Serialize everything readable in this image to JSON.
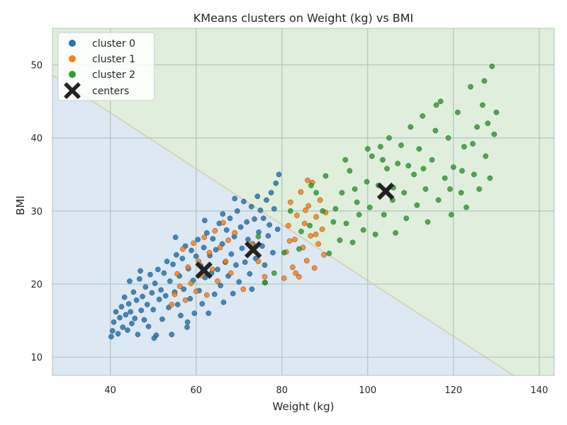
{
  "chart_data": {
    "type": "scatter",
    "title": "KMeans clusters on Weight (kg) vs BMI",
    "xlabel": "Weight (kg)",
    "ylabel": "BMI",
    "xlim": [
      26.5,
      143.5
    ],
    "ylim": [
      7.5,
      55
    ],
    "x_ticks": [
      40,
      60,
      80,
      100,
      120,
      140
    ],
    "y_ticks": [
      10,
      20,
      30,
      40,
      50
    ],
    "grid": true,
    "legend_position": "top-left",
    "background": "decision regions shaded (cluster 0 blue, cluster 2 green)",
    "colors": {
      "cluster 0": "#1f77b4",
      "cluster 1": "#ff7f0e",
      "cluster 2": "#2ca02c",
      "centers": "#222222",
      "region 0": "#dce8f4",
      "region 2": "#dfefdc"
    },
    "boundary_line": [
      [
        26.5,
        48.6
      ],
      [
        134.0,
        7.5
      ]
    ],
    "legend": [
      "cluster 0",
      "cluster 1",
      "cluster 2",
      "centers"
    ],
    "series": [
      {
        "name": "cluster 0",
        "points": [
          [
            40.2,
            12.8
          ],
          [
            40.5,
            13.6
          ],
          [
            40.8,
            14.8
          ],
          [
            41.3,
            16.2
          ],
          [
            41.8,
            13.2
          ],
          [
            42.2,
            15.4
          ],
          [
            42.6,
            16.9
          ],
          [
            42.9,
            14.1
          ],
          [
            43.3,
            18.2
          ],
          [
            43.6,
            15.8
          ],
          [
            44.0,
            13.7
          ],
          [
            44.3,
            17.3
          ],
          [
            44.7,
            16.2
          ],
          [
            45.0,
            14.6
          ],
          [
            45.4,
            18.9
          ],
          [
            45.7,
            15.3
          ],
          [
            46.1,
            17.8
          ],
          [
            46.4,
            13.1
          ],
          [
            46.8,
            20.7
          ],
          [
            47.2,
            16.4
          ],
          [
            47.5,
            18.3
          ],
          [
            47.9,
            15.1
          ],
          [
            48.2,
            19.6
          ],
          [
            48.6,
            17.2
          ],
          [
            48.9,
            14.2
          ],
          [
            49.3,
            21.3
          ],
          [
            49.7,
            18.8
          ],
          [
            50.0,
            16.5
          ],
          [
            50.4,
            20.1
          ],
          [
            50.7,
            13.0
          ],
          [
            51.1,
            22.0
          ],
          [
            51.4,
            17.9
          ],
          [
            51.8,
            19.2
          ],
          [
            52.1,
            15.2
          ],
          [
            52.5,
            21.5
          ],
          [
            52.9,
            18.4
          ],
          [
            53.2,
            23.1
          ],
          [
            53.6,
            16.8
          ],
          [
            53.9,
            20.4
          ],
          [
            54.3,
            13.1
          ],
          [
            54.6,
            22.7
          ],
          [
            55.0,
            18.9
          ],
          [
            55.4,
            24.0
          ],
          [
            55.7,
            17.2
          ],
          [
            56.1,
            21.1
          ],
          [
            56.4,
            15.7
          ],
          [
            56.8,
            23.5
          ],
          [
            57.1,
            19.3
          ],
          [
            57.5,
            25.2
          ],
          [
            57.9,
            14.1
          ],
          [
            58.2,
            22.1
          ],
          [
            58.6,
            18.0
          ],
          [
            58.9,
            24.6
          ],
          [
            59.3,
            20.5
          ],
          [
            59.6,
            16.0
          ],
          [
            60.0,
            23.8
          ],
          [
            60.4,
            26.1
          ],
          [
            60.7,
            19.1
          ],
          [
            61.1,
            22.5
          ],
          [
            61.4,
            17.3
          ],
          [
            61.8,
            25.0
          ],
          [
            62.1,
            20.9
          ],
          [
            62.5,
            27.0
          ],
          [
            62.9,
            16.0
          ],
          [
            63.2,
            23.9
          ],
          [
            63.6,
            21.5
          ],
          [
            63.9,
            26.2
          ],
          [
            64.3,
            18.6
          ],
          [
            64.6,
            24.7
          ],
          [
            65.0,
            22.0
          ],
          [
            65.4,
            28.3
          ],
          [
            65.7,
            19.8
          ],
          [
            66.1,
            25.5
          ],
          [
            66.4,
            17.5
          ],
          [
            66.8,
            23.0
          ],
          [
            67.1,
            27.4
          ],
          [
            67.5,
            21.1
          ],
          [
            67.9,
            29.0
          ],
          [
            68.2,
            24.1
          ],
          [
            68.6,
            18.7
          ],
          [
            68.9,
            26.5
          ],
          [
            69.3,
            22.6
          ],
          [
            69.6,
            30.0
          ],
          [
            70.0,
            20.3
          ],
          [
            70.4,
            27.8
          ],
          [
            70.7,
            24.9
          ],
          [
            71.1,
            31.3
          ],
          [
            71.4,
            23.0
          ],
          [
            71.8,
            28.5
          ],
          [
            72.1,
            26.1
          ],
          [
            72.5,
            21.4
          ],
          [
            72.9,
            30.6
          ],
          [
            73.2,
            25.5
          ],
          [
            73.6,
            28.9
          ],
          [
            73.9,
            23.5
          ],
          [
            74.3,
            32.0
          ],
          [
            74.6,
            27.1
          ],
          [
            75.0,
            30.1
          ],
          [
            75.4,
            25.2
          ],
          [
            75.7,
            29.0
          ],
          [
            76.1,
            20.2
          ],
          [
            76.4,
            31.5
          ],
          [
            76.8,
            26.6
          ],
          [
            77.1,
            28.1
          ],
          [
            77.5,
            32.5
          ],
          [
            77.9,
            24.3
          ],
          [
            78.2,
            30.3
          ],
          [
            78.6,
            33.8
          ],
          [
            79.0,
            27.5
          ],
          [
            79.3,
            35.0
          ],
          [
            44.5,
            20.4
          ],
          [
            47.0,
            21.8
          ],
          [
            50.2,
            12.6
          ],
          [
            55.2,
            26.4
          ],
          [
            58.0,
            14.8
          ],
          [
            62.0,
            28.7
          ],
          [
            66.2,
            29.6
          ],
          [
            69.0,
            31.7
          ],
          [
            73.0,
            19.3
          ],
          [
            76.0,
            22.6
          ]
        ]
      },
      {
        "name": "cluster 1",
        "points": [
          [
            54.3,
            17.2
          ],
          [
            55.0,
            18.6
          ],
          [
            55.6,
            21.4
          ],
          [
            56.2,
            19.7
          ],
          [
            56.9,
            24.8
          ],
          [
            57.5,
            17.8
          ],
          [
            58.1,
            22.3
          ],
          [
            58.8,
            20.1
          ],
          [
            59.4,
            25.6
          ],
          [
            60.0,
            19.0
          ],
          [
            60.6,
            23.1
          ],
          [
            61.3,
            21.2
          ],
          [
            61.9,
            26.4
          ],
          [
            62.5,
            18.5
          ],
          [
            63.1,
            24.3
          ],
          [
            63.8,
            22.0
          ],
          [
            64.4,
            27.3
          ],
          [
            65.0,
            20.4
          ],
          [
            65.6,
            25.0
          ],
          [
            66.3,
            28.4
          ],
          [
            66.9,
            23.1
          ],
          [
            67.5,
            26.0
          ],
          [
            68.1,
            21.5
          ],
          [
            69.0,
            27.0
          ],
          [
            71.0,
            19.3
          ],
          [
            73.0,
            25.5
          ],
          [
            74.5,
            23.1
          ],
          [
            76.0,
            21.0
          ],
          [
            80.5,
            20.8
          ],
          [
            81.0,
            24.4
          ],
          [
            81.5,
            28.0
          ],
          [
            82.0,
            31.2
          ],
          [
            82.5,
            22.3
          ],
          [
            83.0,
            26.1
          ],
          [
            83.5,
            29.4
          ],
          [
            84.0,
            21.0
          ],
          [
            84.4,
            32.6
          ],
          [
            84.9,
            25.0
          ],
          [
            85.3,
            28.3
          ],
          [
            85.8,
            23.2
          ],
          [
            86.2,
            30.7
          ],
          [
            86.7,
            26.6
          ],
          [
            87.1,
            33.9
          ],
          [
            87.6,
            22.2
          ],
          [
            88.0,
            29.2
          ],
          [
            88.5,
            25.5
          ],
          [
            88.9,
            31.5
          ],
          [
            89.4,
            27.5
          ],
          [
            89.8,
            24.0
          ],
          [
            90.2,
            29.8
          ],
          [
            86.0,
            34.2
          ],
          [
            83.2,
            21.5
          ],
          [
            87.9,
            26.8
          ],
          [
            81.8,
            25.9
          ],
          [
            85.5,
            30.1
          ]
        ]
      },
      {
        "name": "cluster 2",
        "points": [
          [
            74.5,
            26.5
          ],
          [
            76.0,
            20.2
          ],
          [
            78.2,
            21.5
          ],
          [
            80.5,
            24.3
          ],
          [
            82.0,
            30.0
          ],
          [
            84.5,
            27.2
          ],
          [
            86.5,
            28.0
          ],
          [
            88.0,
            32.5
          ],
          [
            90.2,
            34.8
          ],
          [
            91.0,
            24.2
          ],
          [
            92.5,
            30.3
          ],
          [
            93.5,
            26.0
          ],
          [
            94.0,
            32.5
          ],
          [
            95.0,
            28.3
          ],
          [
            95.8,
            35.5
          ],
          [
            96.5,
            25.7
          ],
          [
            97.0,
            33.0
          ],
          [
            98.0,
            29.5
          ],
          [
            99.0,
            27.4
          ],
          [
            99.8,
            34.0
          ],
          [
            100.5,
            30.5
          ],
          [
            101.0,
            37.5
          ],
          [
            101.8,
            26.8
          ],
          [
            102.5,
            33.5
          ],
          [
            103.0,
            38.8
          ],
          [
            103.8,
            29.5
          ],
          [
            104.5,
            35.8
          ],
          [
            105.0,
            40.0
          ],
          [
            105.8,
            31.5
          ],
          [
            106.5,
            27.0
          ],
          [
            107.0,
            36.5
          ],
          [
            107.8,
            39.0
          ],
          [
            108.5,
            32.5
          ],
          [
            109.0,
            29.0
          ],
          [
            110.0,
            41.5
          ],
          [
            110.8,
            35.0
          ],
          [
            111.5,
            30.8
          ],
          [
            112.0,
            38.5
          ],
          [
            112.8,
            43.0
          ],
          [
            113.5,
            33.0
          ],
          [
            114.0,
            28.5
          ],
          [
            115.0,
            37.0
          ],
          [
            115.8,
            41.0
          ],
          [
            116.5,
            31.5
          ],
          [
            117.0,
            45.0
          ],
          [
            118.0,
            34.5
          ],
          [
            118.8,
            40.0
          ],
          [
            119.5,
            29.5
          ],
          [
            120.0,
            36.0
          ],
          [
            121.0,
            43.5
          ],
          [
            121.8,
            32.5
          ],
          [
            122.5,
            38.8
          ],
          [
            123.0,
            30.5
          ],
          [
            124.0,
            47.0
          ],
          [
            124.8,
            35.0
          ],
          [
            125.5,
            41.5
          ],
          [
            126.0,
            33.0
          ],
          [
            126.8,
            44.5
          ],
          [
            127.5,
            37.5
          ],
          [
            128.0,
            42.0
          ],
          [
            128.5,
            34.5
          ],
          [
            129.0,
            49.8
          ],
          [
            129.5,
            40.5
          ],
          [
            130.0,
            43.5
          ],
          [
            127.2,
            47.8
          ],
          [
            124.5,
            39.2
          ],
          [
            122.0,
            35.5
          ],
          [
            119.2,
            33.0
          ],
          [
            116.0,
            44.5
          ],
          [
            113.0,
            35.8
          ],
          [
            109.5,
            36.2
          ],
          [
            106.0,
            33.2
          ],
          [
            103.5,
            37.0
          ],
          [
            100.0,
            38.5
          ],
          [
            97.5,
            31.2
          ],
          [
            94.8,
            37.0
          ],
          [
            92.0,
            28.5
          ],
          [
            89.5,
            30.0
          ],
          [
            86.8,
            33.5
          ],
          [
            84.0,
            24.8
          ]
        ]
      },
      {
        "name": "centers",
        "points": [
          [
            61.8,
            21.9
          ],
          [
            73.3,
            24.7
          ],
          [
            104.2,
            32.7
          ]
        ]
      }
    ]
  }
}
